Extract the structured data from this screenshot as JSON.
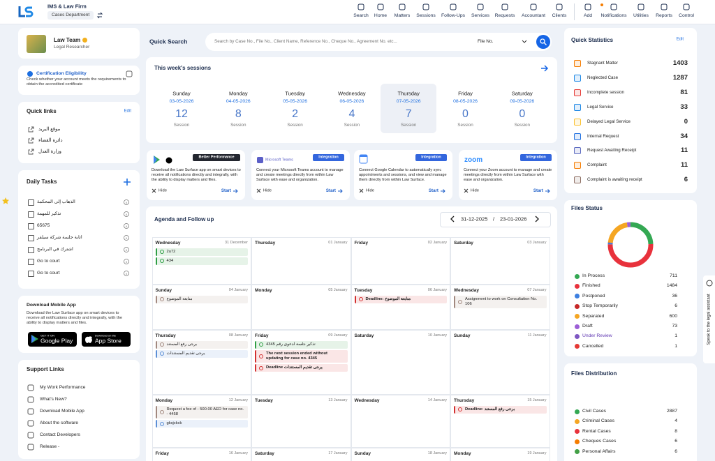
{
  "header": {
    "brand": "IMS & Law Firm",
    "department": "Cases Department",
    "nav": [
      "Search",
      "Home",
      "Matters",
      "Sessions",
      "Follow-Ups",
      "Services",
      "Requests",
      "Accountant",
      "Clients"
    ],
    "actions": [
      "Add",
      "Notifications",
      "Utilities",
      "Reports",
      "Control"
    ]
  },
  "profile": {
    "name": "Law Team",
    "role": "Legal Researcher"
  },
  "certification": {
    "title": "Certification Eligibility",
    "text": "Check whether your account meets the requirements to obtain the accredited certificate"
  },
  "quick_links": {
    "title": "Quick links",
    "edit": "Edit",
    "items": [
      "موقع البريد",
      "دائرة القضاء",
      "وزارة العدل"
    ]
  },
  "daily_tasks": {
    "title": "Daily Tasks",
    "items": [
      "الذهاب إلى المحكمة",
      "تذكير للمهمة",
      "65675",
      "اتابة جلسة شركة سيلفر",
      "اشترك في البرنامج",
      "Go to court",
      "Go to court"
    ]
  },
  "mobile_app": {
    "title": "Download Mobile App",
    "text": "Download the Law Surface app on smart devices to receive all notifications directly and integrally, with the ability to display matters and files.",
    "google": {
      "small": "GET IT ON",
      "big": "Google Play"
    },
    "apple": {
      "small": "Download on the",
      "big": "App Store"
    }
  },
  "support_links": {
    "title": "Support Links",
    "items": [
      "My Work Performance",
      "What's New?",
      "Download Mobile App",
      "About the software",
      "Contact Developers",
      "Release -"
    ]
  },
  "quick_search": {
    "title": "Quick Search",
    "placeholder": "Search by Case No., File No., Client Name, Reference No., Cheque No., Agreement No. etc...",
    "filter": "File No."
  },
  "sessions": {
    "title": "This week's sessions",
    "unit": "Session",
    "selected_index": 4,
    "days": [
      {
        "day": "Sunday",
        "date": "03-05-2026",
        "count": 12
      },
      {
        "day": "Monday",
        "date": "04-05-2026",
        "count": 8
      },
      {
        "day": "Tuesday",
        "date": "05-05-2026",
        "count": 2
      },
      {
        "day": "Wednesday",
        "date": "06-05-2026",
        "count": 4
      },
      {
        "day": "Thursday",
        "date": "07-05-2026",
        "count": 7
      },
      {
        "day": "Friday",
        "date": "08-05-2026",
        "count": 0
      },
      {
        "day": "Saturday",
        "date": "09-05-2026",
        "count": 0
      }
    ]
  },
  "integrations": {
    "hide": "Hide",
    "start": "Start",
    "cards": [
      {
        "badge": "Better Performance",
        "text": "Download the Law Surface app on smart devices to receive all notifications directly and integrally, with the ability to display matters and files."
      },
      {
        "logo": "Microsoft Teams",
        "badge": "Integration",
        "text": "Connect your Microsoft Teams account to manage and create meetings directly from within Law Surface with ease and organization."
      },
      {
        "badge": "Integration",
        "text": "Connect Google Calendar to automatically sync appointments and sessions, and view and manage them directly from within Law Surface."
      },
      {
        "logo": "zoom",
        "badge": "Integration",
        "text": "Connect your Zoom account to manage and create meetings directly from within Law Surface with ease and organization."
      }
    ]
  },
  "agenda": {
    "title": "Agenda and Follow up",
    "from": "31-12-2025",
    "separator": "/",
    "to": "23-01-2026",
    "weeks": [
      [
        {
          "day": "Wednesday",
          "date": "31 December",
          "events": [
            {
              "text": "2u72",
              "color": "#2e9e44"
            },
            {
              "text": "434",
              "color": "#2e9e44"
            }
          ]
        },
        {
          "day": "Thursday",
          "date": "01 January"
        },
        {
          "day": "Friday",
          "date": "02 January"
        },
        {
          "day": "Saturday",
          "date": "03 January"
        }
      ],
      [
        {
          "day": "Sunday",
          "date": "04 January",
          "events": [
            {
              "text": "متابعة الموضوع",
              "color": "#a1887f"
            }
          ]
        },
        {
          "day": "Monday",
          "date": "05 January"
        },
        {
          "day": "Tuesday",
          "date": "06 January",
          "events": [
            {
              "text": "Deadline: متابعة الموضوع",
              "color": "#d32f2f"
            }
          ]
        },
        {
          "day": "Wednesday",
          "date": "07 January",
          "events": [
            {
              "text": "Assignment to work on Consultation No. 106",
              "color": "#a1887f"
            }
          ]
        }
      ],
      [
        {
          "day": "Thursday",
          "date": "08 January",
          "events": [
            {
              "text": "برجى رفع المستند",
              "color": "#a1887f"
            },
            {
              "text": "يرجى تقديم المستندات",
              "color": "#5c8fd6"
            }
          ]
        },
        {
          "day": "Friday",
          "date": "09 January",
          "events": [
            {
              "text": "تذكير جلسة لدعوى رقم 4345",
              "color": "#2e9e44"
            },
            {
              "text": "The next session ended without updating for case no. 4345",
              "color": "#d32f2f"
            },
            {
              "text": "Deadline يرجى تقديم المستندات",
              "color": "#d32f2f"
            }
          ]
        },
        {
          "day": "Saturday",
          "date": "10 January"
        },
        {
          "day": "Sunday",
          "date": "11 January"
        }
      ],
      [
        {
          "day": "Monday",
          "date": "12 January",
          "events": [
            {
              "text": "Request a fee of - 500.00 AED for case no. - 4458",
              "color": "#a1887f"
            },
            {
              "text": "gksjckck",
              "color": "#5c8fd6"
            }
          ]
        },
        {
          "day": "Tuesday",
          "date": "13 January"
        },
        {
          "day": "Wednesday",
          "date": "14 January"
        },
        {
          "day": "Thursday",
          "date": "15 January",
          "events": [
            {
              "text": "Deadline: برجى رفع المستند",
              "color": "#d32f2f"
            }
          ]
        }
      ],
      [
        {
          "day": "Friday",
          "date": "16 January"
        },
        {
          "day": "Saturday",
          "date": "17 January"
        },
        {
          "day": "Sunday",
          "date": "18 January"
        },
        {
          "day": "Monday",
          "date": "19 January"
        }
      ]
    ]
  },
  "quick_statistics": {
    "title": "Quick Statistics",
    "edit": "Edit",
    "items": [
      {
        "label": "Stagnant Matter",
        "value": 1403
      },
      {
        "label": "Neglected Case",
        "value": 1287
      },
      {
        "label": "Incomplete session",
        "value": 81
      },
      {
        "label": "Legal Service",
        "value": 33
      },
      {
        "label": "Delayed Legal Service",
        "value": 0
      },
      {
        "label": "Internal Request",
        "value": 34
      },
      {
        "label": "Request Awaiting Receipt",
        "value": 11
      },
      {
        "label": "Complaint",
        "value": 11
      },
      {
        "label": "Complaint is awaiting receipt",
        "value": 6
      }
    ]
  },
  "files_status": {
    "title": "Files Status",
    "items": [
      {
        "name": "In Process",
        "value": 711,
        "color": "#34a853"
      },
      {
        "name": "Finished",
        "value": 1484,
        "color": "#e8323c"
      },
      {
        "name": "Postponed",
        "value": 36,
        "color": "#3d7fe0"
      },
      {
        "name": "Stop Temporarily",
        "value": 6,
        "color": "#c62828"
      },
      {
        "name": "Separated",
        "value": 600,
        "color": "#f5a623"
      },
      {
        "name": "Draft",
        "value": 73,
        "color": "#9c5fd6"
      },
      {
        "name": "Under Review",
        "value": 1,
        "color": "#7e57c2"
      },
      {
        "name": "Cancelled",
        "value": 1,
        "color": "#e53935"
      }
    ]
  },
  "files_distribution": {
    "title": "Files Distribution",
    "items": [
      {
        "name": "Civil Cases",
        "value": 2887,
        "color": "#34a853"
      },
      {
        "name": "Criminal Cases",
        "value": 4,
        "color": "#f5a623"
      },
      {
        "name": "Rental Cases",
        "value": 8,
        "color": "#e8323c"
      },
      {
        "name": "Cheques Cases",
        "value": 6,
        "color": "#f57c00"
      },
      {
        "name": "Personal Affairs",
        "value": 6,
        "color": "#43a047"
      }
    ]
  },
  "assistant": "Speak to the legal assistant"
}
